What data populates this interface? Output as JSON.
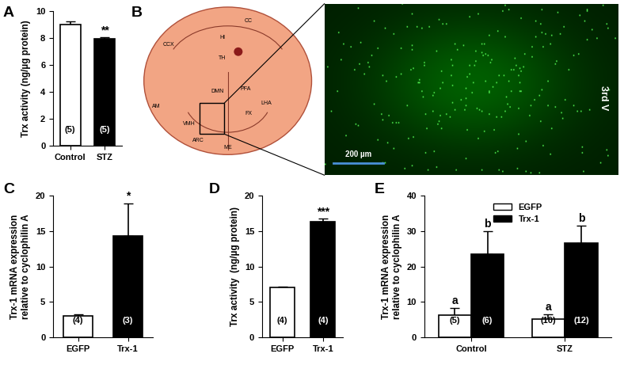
{
  "chart_data": [
    {
      "panel": "A",
      "type": "bar",
      "ylabel": "Trx activity (ng/µg protein)",
      "categories": [
        "Control",
        "STZ"
      ],
      "values": [
        9.0,
        7.95
      ],
      "errors": [
        0.25,
        0.1
      ],
      "n_labels": [
        "(5)",
        "(5)"
      ],
      "annotations": [
        null,
        "**"
      ],
      "colors": [
        "#ffffff",
        "#000000"
      ],
      "ylim": [
        0,
        10
      ],
      "yticks": [
        0,
        2,
        4,
        6,
        8,
        10
      ]
    },
    {
      "panel": "C",
      "type": "bar",
      "ylabel": "Trx-1 mRNA expression\nrelative to cyclophilin A",
      "categories": [
        "EGFP",
        "Trx-1"
      ],
      "values": [
        3.0,
        14.3
      ],
      "errors": [
        0.3,
        4.6
      ],
      "n_labels": [
        "(4)",
        "(3)"
      ],
      "annotations": [
        null,
        "*"
      ],
      "colors": [
        "#ffffff",
        "#000000"
      ],
      "ylim": [
        0,
        20
      ],
      "yticks": [
        0,
        5,
        10,
        15,
        20
      ]
    },
    {
      "panel": "D",
      "type": "bar",
      "ylabel": "Trx activity  (ng/µg protein)",
      "categories": [
        "EGFP",
        "Trx-1"
      ],
      "values": [
        7.0,
        16.3
      ],
      "errors": [
        0.2,
        0.4
      ],
      "n_labels": [
        "(4)",
        "(4)"
      ],
      "annotations": [
        null,
        "***"
      ],
      "colors": [
        "#ffffff",
        "#000000"
      ],
      "ylim": [
        0,
        20
      ],
      "yticks": [
        0,
        5,
        10,
        15,
        20
      ]
    },
    {
      "panel": "E",
      "type": "grouped_bar",
      "ylabel": "Trx-1 mRNA expression\nrelative to cyclophilin A",
      "categories": [
        "Control",
        "STZ"
      ],
      "series": [
        {
          "name": "EGFP",
          "color": "#ffffff",
          "values": [
            6.3,
            5.3
          ],
          "errors": [
            2.0,
            1.3
          ],
          "n_labels": [
            "(5)",
            "(10)"
          ],
          "annotations": [
            "a",
            "a"
          ]
        },
        {
          "name": "Trx-1",
          "color": "#000000",
          "values": [
            23.5,
            26.5
          ],
          "errors": [
            6.5,
            5.0
          ],
          "n_labels": [
            "(6)",
            "(12)"
          ],
          "annotations": [
            "b",
            "b"
          ]
        }
      ],
      "legend": "upper center",
      "ylim": [
        0,
        40
      ],
      "yticks": [
        0,
        10,
        20,
        30,
        40
      ]
    }
  ],
  "diagram": {
    "panel": "B",
    "regions": [
      "CC",
      "CCX",
      "HI",
      "TH",
      "DMN",
      "PFA",
      "LHA",
      "FX",
      "AM",
      "VMH",
      "ARC",
      "ME"
    ],
    "scale_bar": "200 µm",
    "ventricle_label": "3rd V"
  }
}
